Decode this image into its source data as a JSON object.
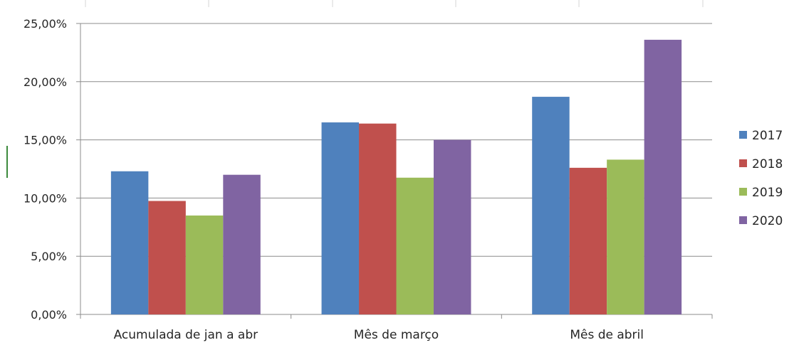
{
  "chart_data": {
    "type": "bar",
    "title": "",
    "xlabel": "",
    "ylabel": "",
    "categories": [
      "Acumulada de jan a abr",
      "Mês de março",
      "Mês de abril"
    ],
    "series": [
      {
        "name": "2017",
        "color": "#4f81bd",
        "values": [
          12.3,
          16.5,
          18.7
        ]
      },
      {
        "name": "2018",
        "color": "#c0504d",
        "values": [
          9.75,
          16.4,
          12.6
        ]
      },
      {
        "name": "2019",
        "color": "#9bbb59",
        "values": [
          8.5,
          11.75,
          13.3
        ]
      },
      {
        "name": "2020",
        "color": "#8064a2",
        "values": [
          12.0,
          15.0,
          23.6
        ]
      }
    ],
    "ylim": [
      0,
      25
    ],
    "yticks": [
      0,
      5,
      10,
      15,
      20,
      25
    ],
    "ytick_labels": [
      "0,00%",
      "5,00%",
      "10,00%",
      "15,00%",
      "20,00%",
      "25,00%"
    ],
    "grid": true,
    "legend_position": "right"
  }
}
